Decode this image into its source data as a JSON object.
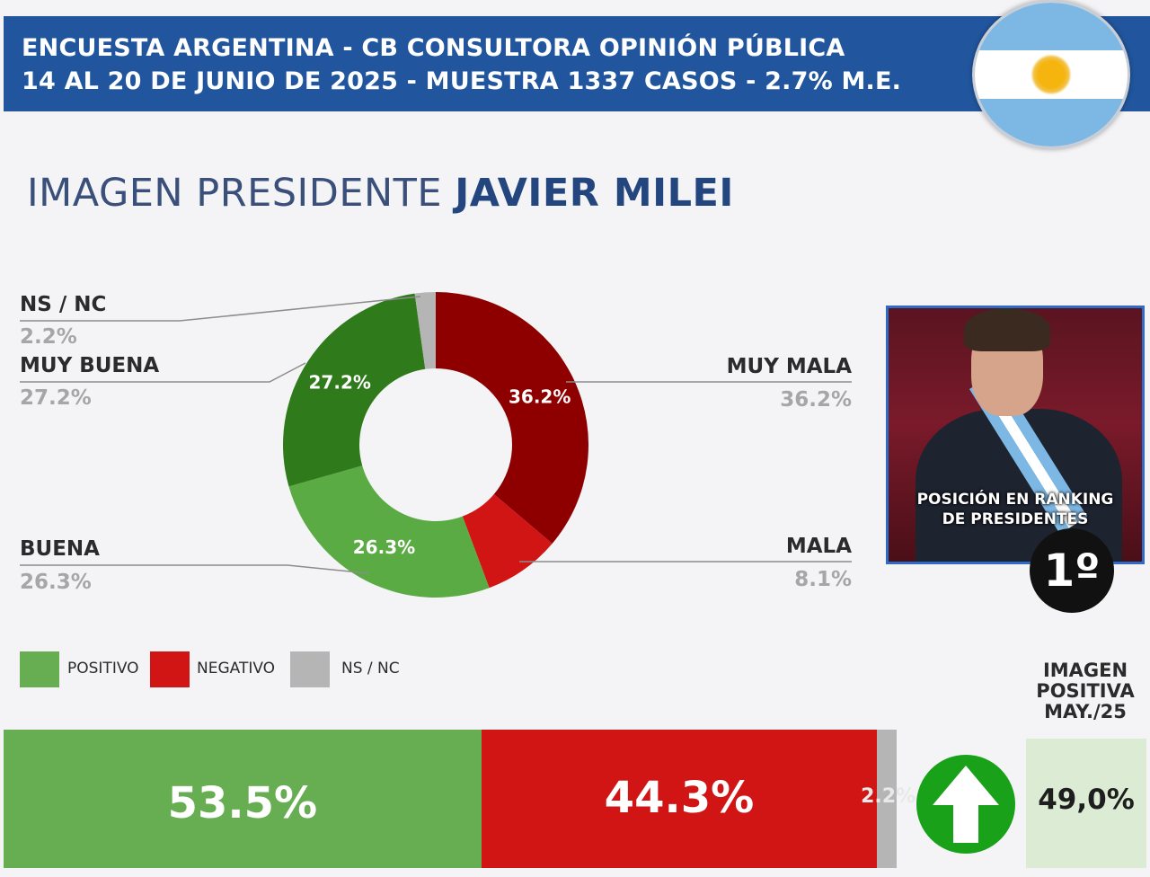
{
  "header": {
    "line1": "ENCUESTA ARGENTINA - CB CONSULTORA OPINIÓN PÚBLICA",
    "line2": "14 AL 20 DE JUNIO DE 2025 - MUESTRA 1337 CASOS - 2.7% M.E."
  },
  "title": {
    "prefix": "IMAGEN PRESIDENTE",
    "name": "JAVIER MILEI"
  },
  "chart_data": [
    {
      "type": "pie",
      "donut": true,
      "slices": [
        {
          "label": "MUY MALA",
          "value": 36.2,
          "display": "36.2%",
          "color": "#8e0000"
        },
        {
          "label": "MALA",
          "value": 8.1,
          "display": "8.1%",
          "color": "#d11414"
        },
        {
          "label": "BUENA",
          "value": 26.3,
          "display": "26.3%",
          "color": "#5aab44"
        },
        {
          "label": "MUY BUENA",
          "value": 27.2,
          "display": "27.2%",
          "color": "#2f7a1b"
        },
        {
          "label": "NS / NC",
          "value": 2.2,
          "display": "2.2%",
          "color": "#b5b5b5"
        }
      ]
    },
    {
      "type": "bar",
      "stacked": true,
      "orientation": "horizontal",
      "series": [
        {
          "name": "POSITIVO",
          "value": 53.5,
          "display": "53.5%",
          "color": "#67ae52"
        },
        {
          "name": "NEGATIVO",
          "value": 44.3,
          "display": "44.3%",
          "color": "#d11414"
        },
        {
          "name": "NS / NC",
          "value": 2.2,
          "display": "2.2%",
          "color": "#b5b5b5"
        }
      ]
    }
  ],
  "legend": [
    {
      "label": "POSITIVO",
      "color": "#67ae52"
    },
    {
      "label": "NEGATIVO",
      "color": "#d11414"
    },
    {
      "label": "NS / NC",
      "color": "#b5b5b5"
    }
  ],
  "ranking": {
    "text_line1": "POSICIÓN EN RANKING",
    "text_line2": "DE PRESIDENTES",
    "position": "1º"
  },
  "previous": {
    "label_line1": "IMAGEN",
    "label_line2": "POSITIVA",
    "label_line3": "MAY./25",
    "value": "49,0%",
    "trend": "up-arrow-icon"
  }
}
